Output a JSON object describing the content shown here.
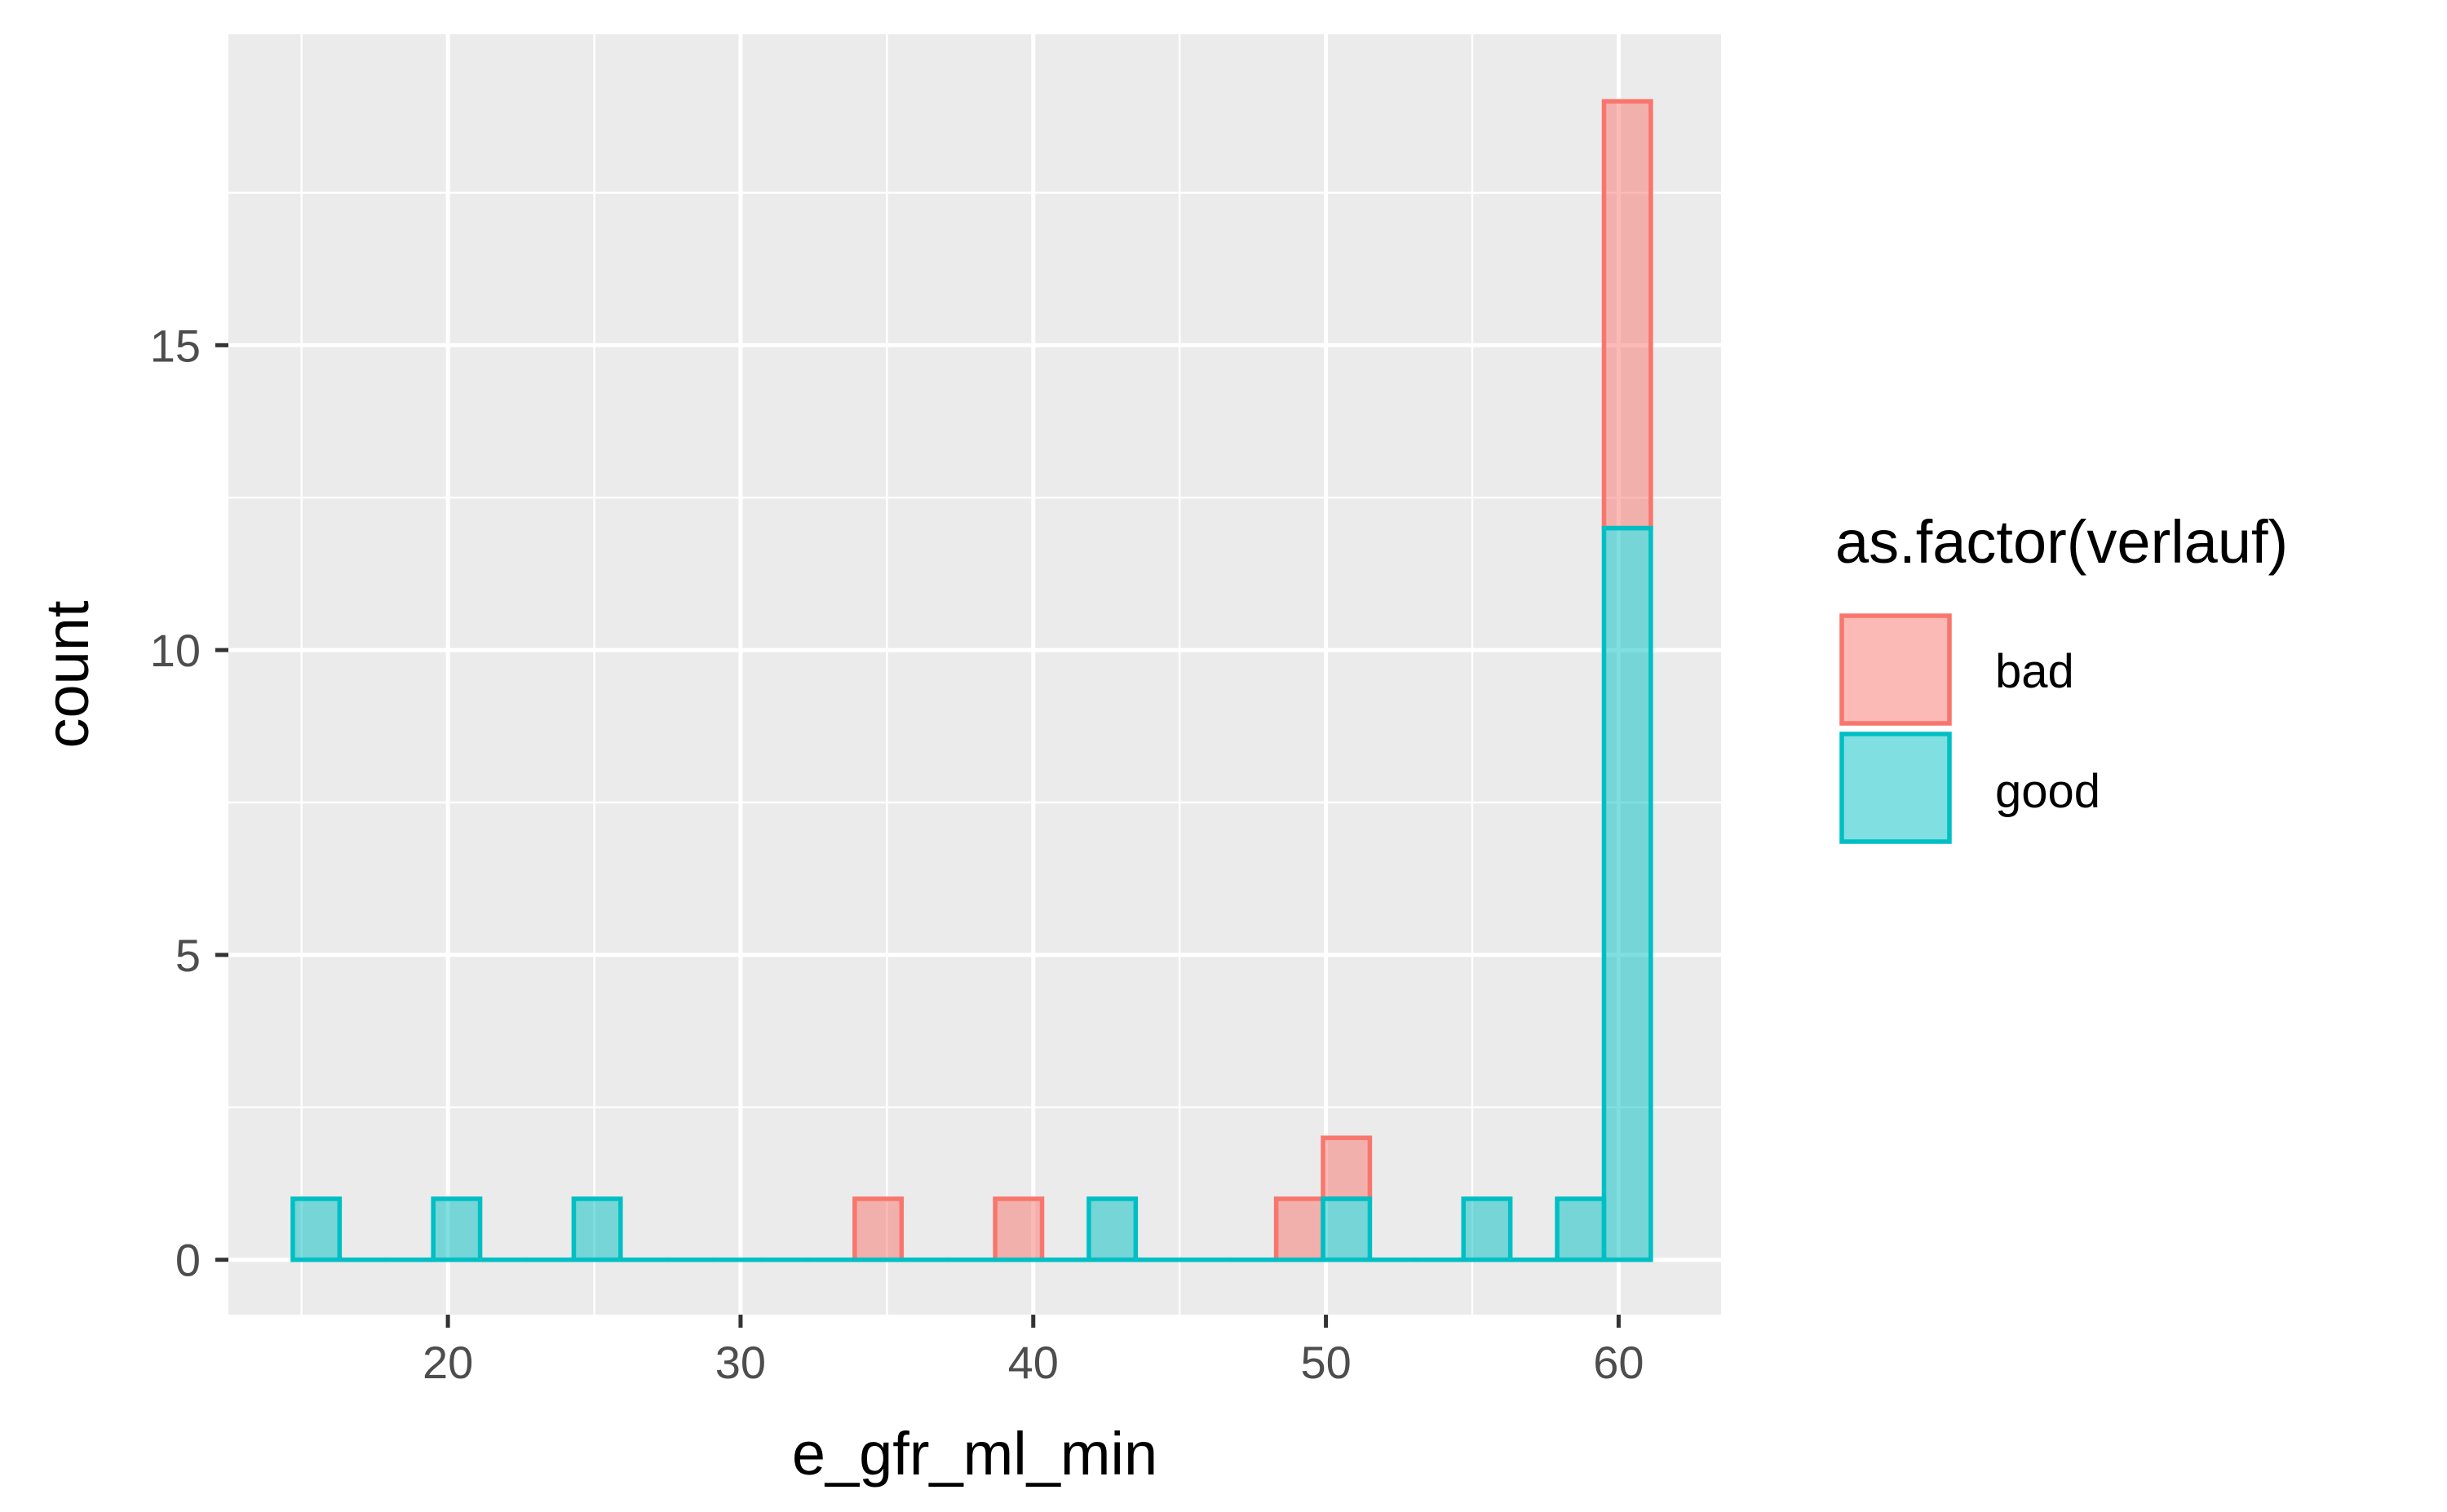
{
  "chart_data": {
    "type": "histogram",
    "xlabel": "e_gfr_ml_min",
    "ylabel": "count",
    "xlim": [
      12.5,
      63.5
    ],
    "ylim": [
      -0.9,
      20.1
    ],
    "x_ticks": [
      20,
      30,
      40,
      50,
      60
    ],
    "x_minor_ticks": [
      15,
      25,
      35,
      45,
      55
    ],
    "y_ticks": [
      0,
      5,
      10,
      15
    ],
    "y_minor_ticks": [
      2.5,
      7.5,
      12.5,
      17.5
    ],
    "binwidth": 1.6,
    "bin_start": 14.7,
    "stacked": true,
    "legend": {
      "title": "as.factor(verlauf)",
      "position": "right",
      "entries": [
        "bad",
        "good"
      ]
    },
    "series": [
      {
        "name": "bad",
        "fill": "#F8766D",
        "outline": "#F8766D",
        "counts": [
          0,
          0,
          0,
          0,
          0,
          0,
          0,
          0,
          0,
          0,
          0,
          0,
          1,
          0,
          0,
          1,
          0,
          0,
          0,
          0,
          0,
          1,
          1,
          0,
          0,
          0,
          0,
          0,
          7
        ]
      },
      {
        "name": "good",
        "fill": "#00BFC4",
        "outline": "#00BFC4",
        "counts": [
          1,
          0,
          0,
          1,
          0,
          0,
          1,
          0,
          0,
          0,
          0,
          0,
          0,
          0,
          0,
          0,
          0,
          1,
          0,
          0,
          0,
          0,
          1,
          0,
          0,
          1,
          0,
          1,
          12
        ]
      }
    ]
  },
  "colors": {
    "panel": "#EBEBEB",
    "grid": "#FFFFFF"
  }
}
